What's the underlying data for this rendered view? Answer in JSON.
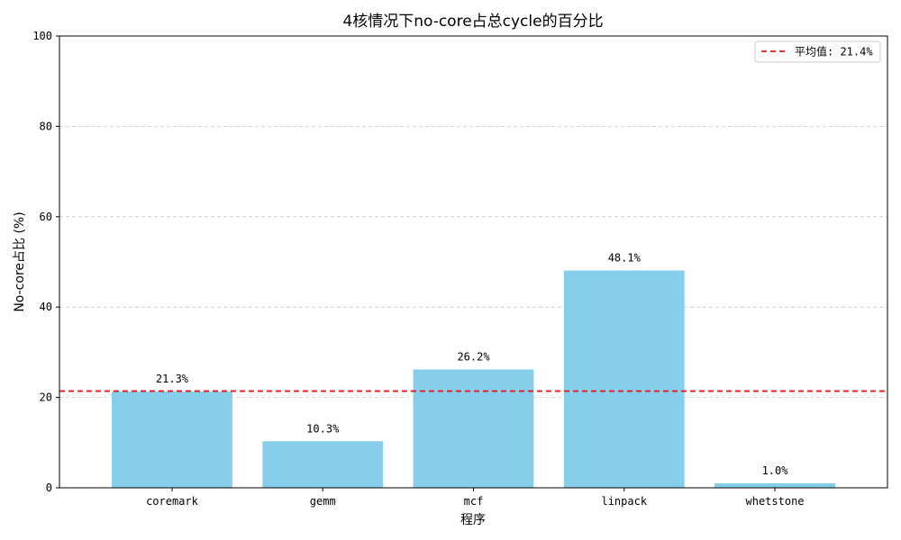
{
  "chart_data": {
    "type": "bar",
    "title": "4核情况下no-core占总cycle的百分比",
    "xlabel": "程序",
    "ylabel": "No-core占比 (%)",
    "categories": [
      "coremark",
      "gemm",
      "mcf",
      "linpack",
      "whetstone"
    ],
    "values": [
      21.3,
      10.3,
      26.2,
      48.1,
      1.0
    ],
    "data_labels": [
      "21.3%",
      "10.3%",
      "26.2%",
      "48.1%",
      "1.0%"
    ],
    "ylim": [
      0,
      100
    ],
    "yticks": [
      0,
      20,
      40,
      60,
      80,
      100
    ],
    "bar_color": "#87ceeb",
    "grid": "y-dashed",
    "average": {
      "label": "平均值: 21.4%",
      "value": 21.4,
      "color": "#e31a1c",
      "style": "dashed"
    },
    "legend_position": "top-right"
  }
}
